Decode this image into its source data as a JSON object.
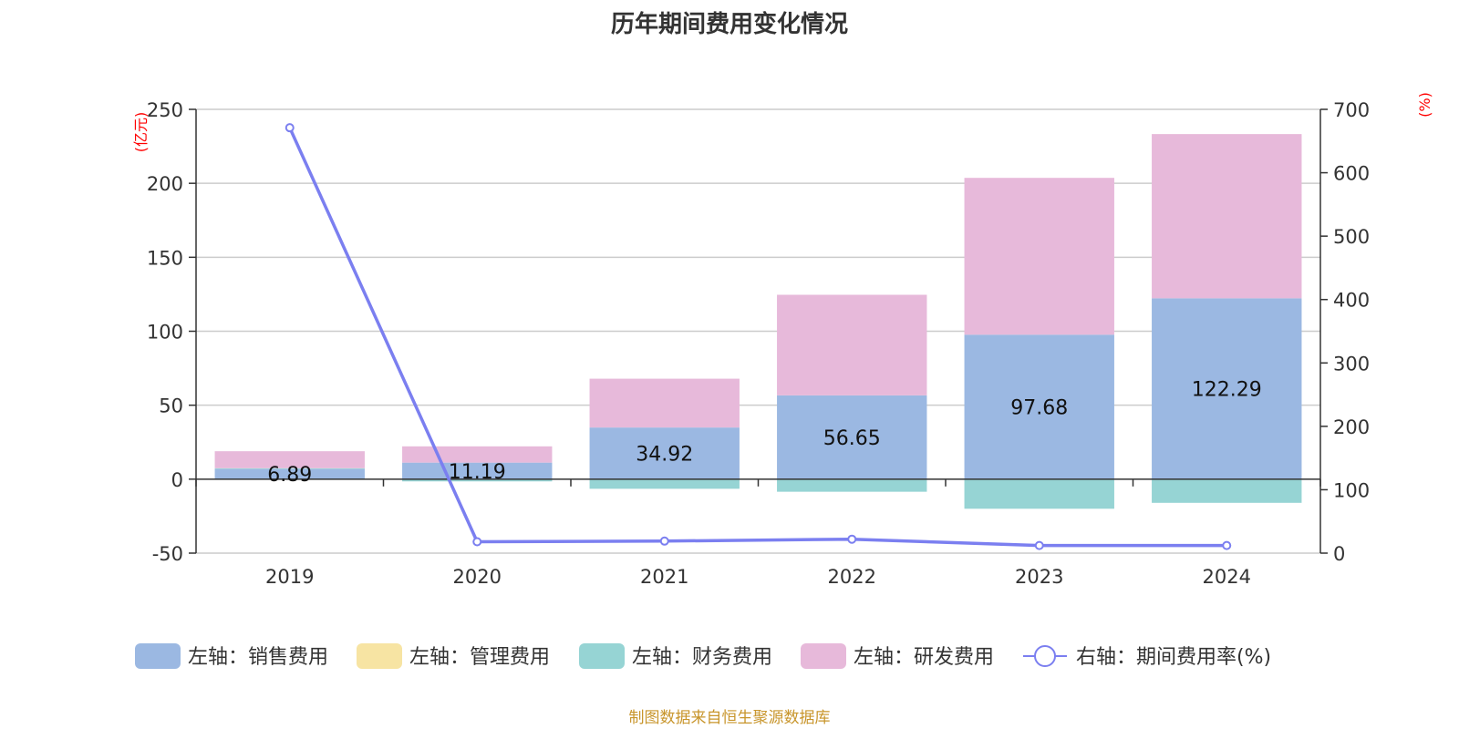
{
  "title": "历年期间费用变化情况",
  "source": "制图数据来自恒生聚源数据库",
  "colors": {
    "sales": "#9bb8e2",
    "admin": "#f7e4a3",
    "finance": "#96d4d4",
    "rnd": "#e7b9da",
    "line": "#7b7ff0",
    "unit": "#ff0000",
    "grid": "#cccccc",
    "axis": "#333333"
  },
  "chart_data": {
    "type": "bar",
    "stacked": true,
    "categories": [
      "2019",
      "2020",
      "2021",
      "2022",
      "2023",
      "2024"
    ],
    "left_axis": {
      "unit": "(亿元)",
      "ylim": [
        -50,
        250
      ],
      "ticks": [
        -50,
        0,
        50,
        100,
        150,
        200,
        250
      ]
    },
    "right_axis": {
      "unit": "(%)",
      "ylim": [
        0,
        700
      ],
      "ticks": [
        0,
        100,
        200,
        300,
        400,
        500,
        600,
        700
      ]
    },
    "grid": true,
    "legend_position": "bottom",
    "series": [
      {
        "name": "左轴：销售费用",
        "key": "sales",
        "axis": "left",
        "type": "bar",
        "values": [
          6.89,
          11.19,
          34.92,
          56.65,
          97.68,
          122.29
        ],
        "labels": [
          "6.89",
          "11.19",
          "34.92",
          "56.65",
          "97.68",
          "122.29"
        ]
      },
      {
        "name": "左轴：管理费用",
        "key": "admin",
        "axis": "left",
        "type": "bar",
        "values": [
          0,
          0,
          0,
          0,
          0,
          0
        ]
      },
      {
        "name": "左轴：财务费用",
        "key": "finance",
        "axis": "left",
        "type": "bar",
        "values": [
          0.5,
          -1.5,
          -6.5,
          -8.5,
          -20,
          -16
        ]
      },
      {
        "name": "左轴：研发费用",
        "key": "rnd",
        "axis": "left",
        "type": "bar",
        "values": [
          11.5,
          11,
          33,
          68,
          106,
          111
        ]
      },
      {
        "name": "右轴：期间费用率(%)",
        "key": "line",
        "axis": "right",
        "type": "line",
        "values": [
          671,
          18,
          19,
          22,
          12,
          12
        ]
      }
    ]
  }
}
